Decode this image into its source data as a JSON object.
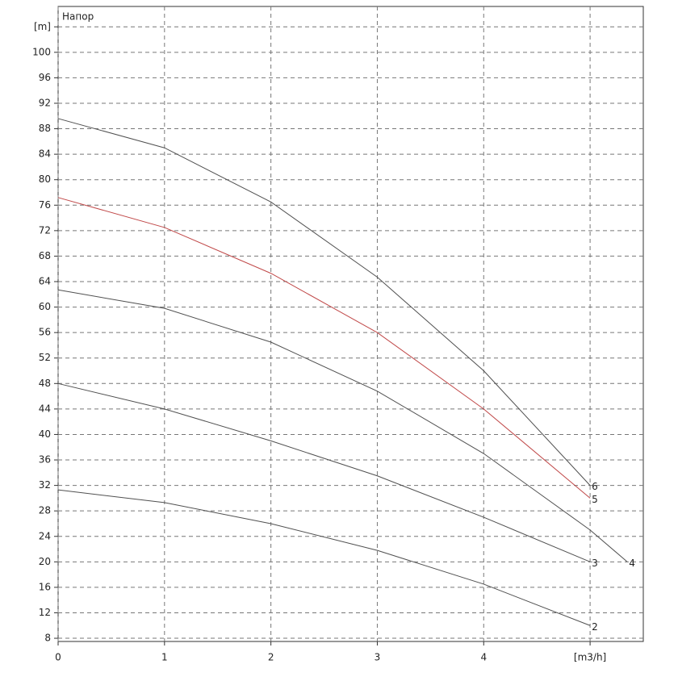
{
  "chart_data": {
    "type": "line",
    "title": "Напор",
    "xlim": [
      0,
      5.5
    ],
    "ylim": [
      7.5,
      107.2
    ],
    "xticks": [
      0,
      1,
      2,
      3,
      4,
      {
        "value": 5,
        "label": "[m3/h]"
      }
    ],
    "yticks": [
      8,
      12,
      16,
      20,
      24,
      28,
      32,
      36,
      40,
      44,
      48,
      52,
      56,
      60,
      64,
      68,
      72,
      76,
      80,
      84,
      88,
      92,
      96,
      100,
      {
        "value": 104,
        "label": "[m]"
      }
    ],
    "grid": true,
    "series": [
      {
        "name": "2",
        "color": "#505050",
        "x": [
          0,
          1,
          2,
          3,
          4,
          5
        ],
        "values": [
          31.3,
          29.3,
          26,
          21.8,
          16.5,
          10
        ]
      },
      {
        "name": "3",
        "color": "#505050",
        "x": [
          0,
          1,
          2,
          3,
          4,
          5
        ],
        "values": [
          48,
          44,
          39,
          33.5,
          27,
          20
        ]
      },
      {
        "name": "4",
        "color": "#505050",
        "x": [
          0,
          1,
          2,
          3,
          4,
          5,
          5.35
        ],
        "values": [
          62.7,
          59.8,
          54.5,
          46.8,
          37,
          25,
          20
        ]
      },
      {
        "name": "5",
        "color": "#c04848",
        "x": [
          0,
          1,
          2,
          3,
          4,
          5
        ],
        "values": [
          77.2,
          72.5,
          65.3,
          56,
          44,
          30
        ]
      },
      {
        "name": "6",
        "color": "#505050",
        "x": [
          0,
          1,
          2,
          3,
          4,
          5
        ],
        "values": [
          89.6,
          85,
          76.5,
          64.7,
          50,
          32
        ]
      }
    ]
  }
}
